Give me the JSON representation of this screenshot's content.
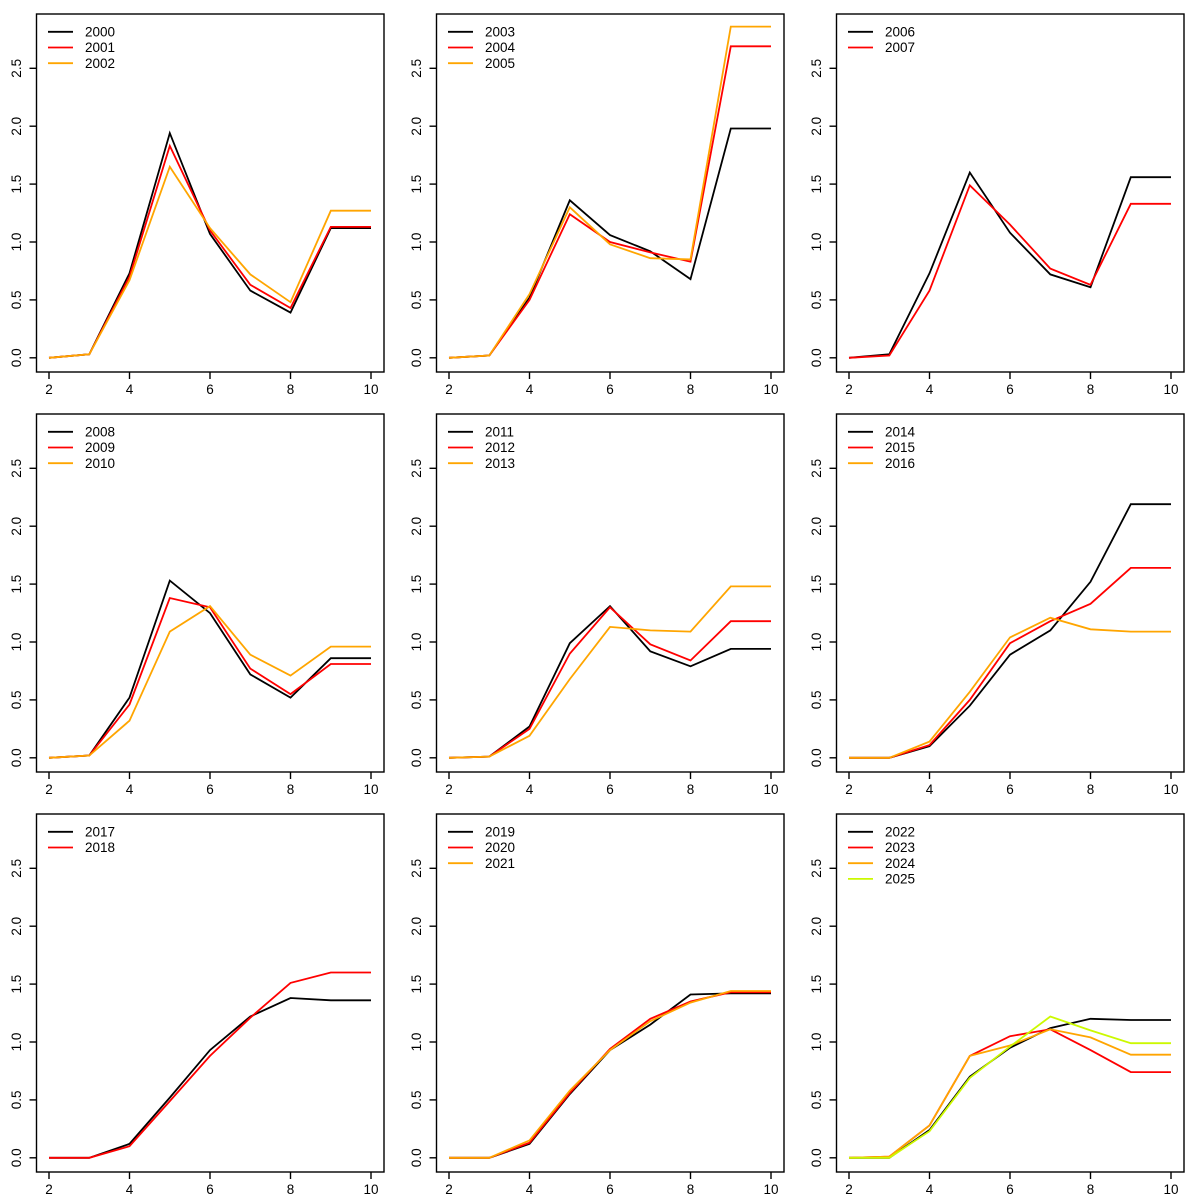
{
  "figure": {
    "background_color": "#ffffff",
    "layout": "3x3 grid of line charts",
    "line_colors": {
      "black": "#000000",
      "red": "#ff0000",
      "orange": "#ffa500",
      "greenyellow": "#ccf900"
    }
  },
  "axes": {
    "xlim": [
      1.68,
      10.32
    ],
    "ylim": [
      -0.115,
      2.98
    ],
    "x_ticks": [
      2,
      4,
      6,
      8,
      10
    ],
    "x_tick_labels": [
      "2",
      "4",
      "6",
      "8",
      "10"
    ],
    "y_ticks": [
      0.0,
      0.5,
      1.0,
      1.5,
      2.0,
      2.5
    ],
    "y_tick_labels": [
      "0.0",
      "0.5",
      "1.0",
      "1.5",
      "2.0",
      "2.5"
    ],
    "grid": "off",
    "box": "full",
    "legend_position": "topleft"
  },
  "chart_data": [
    {
      "type": "line",
      "x": [
        2,
        3,
        4,
        5,
        6,
        7,
        8,
        9,
        10
      ],
      "title": "",
      "xlabel": "",
      "ylabel": "",
      "series": [
        {
          "name": "2000",
          "color": "#000000",
          "values": [
            0.0,
            0.03,
            0.73,
            1.94,
            1.07,
            0.58,
            0.39,
            1.12,
            1.12
          ]
        },
        {
          "name": "2001",
          "color": "#ff0000",
          "values": [
            0.0,
            0.03,
            0.7,
            1.83,
            1.1,
            0.63,
            0.43,
            1.13,
            1.13
          ]
        },
        {
          "name": "2002",
          "color": "#ffa500",
          "values": [
            0.0,
            0.03,
            0.67,
            1.65,
            1.12,
            0.72,
            0.48,
            1.27,
            1.27
          ]
        }
      ]
    },
    {
      "type": "line",
      "x": [
        2,
        3,
        4,
        5,
        6,
        7,
        8,
        9,
        10
      ],
      "title": "",
      "xlabel": "",
      "ylabel": "",
      "series": [
        {
          "name": "2003",
          "color": "#000000",
          "values": [
            0.0,
            0.02,
            0.52,
            1.36,
            1.06,
            0.92,
            0.68,
            1.98,
            1.98
          ]
        },
        {
          "name": "2004",
          "color": "#ff0000",
          "values": [
            0.0,
            0.02,
            0.5,
            1.24,
            1.0,
            0.91,
            0.83,
            2.69,
            2.69
          ]
        },
        {
          "name": "2005",
          "color": "#ffa500",
          "values": [
            0.0,
            0.02,
            0.55,
            1.3,
            0.98,
            0.86,
            0.85,
            2.86,
            2.86
          ]
        }
      ]
    },
    {
      "type": "line",
      "x": [
        2,
        3,
        4,
        5,
        6,
        7,
        8,
        9,
        10
      ],
      "title": "",
      "xlabel": "",
      "ylabel": "",
      "series": [
        {
          "name": "2006",
          "color": "#000000",
          "values": [
            0.0,
            0.03,
            0.73,
            1.6,
            1.08,
            0.72,
            0.61,
            1.56,
            1.56
          ]
        },
        {
          "name": "2007",
          "color": "#ff0000",
          "values": [
            0.0,
            0.02,
            0.58,
            1.49,
            1.15,
            0.77,
            0.63,
            1.33,
            1.33
          ]
        }
      ]
    },
    {
      "type": "line",
      "x": [
        2,
        3,
        4,
        5,
        6,
        7,
        8,
        9,
        10
      ],
      "title": "",
      "xlabel": "",
      "ylabel": "",
      "series": [
        {
          "name": "2008",
          "color": "#000000",
          "values": [
            0.0,
            0.02,
            0.52,
            1.53,
            1.25,
            0.72,
            0.52,
            0.86,
            0.86
          ]
        },
        {
          "name": "2009",
          "color": "#ff0000",
          "values": [
            0.0,
            0.02,
            0.46,
            1.38,
            1.3,
            0.77,
            0.55,
            0.81,
            0.81
          ]
        },
        {
          "name": "2010",
          "color": "#ffa500",
          "values": [
            0.0,
            0.02,
            0.32,
            1.09,
            1.31,
            0.89,
            0.71,
            0.96,
            0.96
          ]
        }
      ]
    },
    {
      "type": "line",
      "x": [
        2,
        3,
        4,
        5,
        6,
        7,
        8,
        9,
        10
      ],
      "title": "",
      "xlabel": "",
      "ylabel": "",
      "series": [
        {
          "name": "2011",
          "color": "#000000",
          "values": [
            0.0,
            0.01,
            0.27,
            0.99,
            1.31,
            0.92,
            0.79,
            0.94,
            0.94
          ]
        },
        {
          "name": "2012",
          "color": "#ff0000",
          "values": [
            0.0,
            0.01,
            0.25,
            0.9,
            1.3,
            0.98,
            0.84,
            1.18,
            1.18
          ]
        },
        {
          "name": "2013",
          "color": "#ffa500",
          "values": [
            0.0,
            0.01,
            0.19,
            0.68,
            1.13,
            1.1,
            1.09,
            1.48,
            1.48
          ]
        }
      ]
    },
    {
      "type": "line",
      "x": [
        2,
        3,
        4,
        5,
        6,
        7,
        8,
        9,
        10
      ],
      "title": "",
      "xlabel": "",
      "ylabel": "",
      "series": [
        {
          "name": "2014",
          "color": "#000000",
          "values": [
            0.0,
            0.0,
            0.1,
            0.45,
            0.89,
            1.1,
            1.52,
            2.19,
            2.19
          ]
        },
        {
          "name": "2015",
          "color": "#ff0000",
          "values": [
            0.0,
            0.0,
            0.11,
            0.5,
            0.99,
            1.18,
            1.33,
            1.64,
            1.64
          ]
        },
        {
          "name": "2016",
          "color": "#ffa500",
          "values": [
            0.0,
            0.0,
            0.14,
            0.57,
            1.04,
            1.21,
            1.11,
            1.09,
            1.09
          ]
        }
      ]
    },
    {
      "type": "line",
      "x": [
        2,
        3,
        4,
        5,
        6,
        7,
        8,
        9,
        10
      ],
      "title": "",
      "xlabel": "",
      "ylabel": "",
      "series": [
        {
          "name": "2017",
          "color": "#000000",
          "values": [
            0.0,
            0.0,
            0.12,
            0.52,
            0.93,
            1.22,
            1.38,
            1.36,
            1.36
          ]
        },
        {
          "name": "2018",
          "color": "#ff0000",
          "values": [
            0.0,
            0.0,
            0.1,
            0.49,
            0.88,
            1.21,
            1.51,
            1.6,
            1.6
          ]
        }
      ]
    },
    {
      "type": "line",
      "x": [
        2,
        3,
        4,
        5,
        6,
        7,
        8,
        9,
        10
      ],
      "title": "",
      "xlabel": "",
      "ylabel": "",
      "series": [
        {
          "name": "2019",
          "color": "#000000",
          "values": [
            0.0,
            0.0,
            0.12,
            0.55,
            0.93,
            1.15,
            1.41,
            1.42,
            1.42
          ]
        },
        {
          "name": "2020",
          "color": "#ff0000",
          "values": [
            0.0,
            0.0,
            0.13,
            0.56,
            0.94,
            1.2,
            1.35,
            1.43,
            1.43
          ]
        },
        {
          "name": "2021",
          "color": "#ffa500",
          "values": [
            0.0,
            0.0,
            0.15,
            0.58,
            0.93,
            1.18,
            1.34,
            1.44,
            1.44
          ]
        }
      ]
    },
    {
      "type": "line",
      "x": [
        2,
        3,
        4,
        5,
        6,
        7,
        8,
        9,
        10
      ],
      "title": "",
      "xlabel": "",
      "ylabel": "",
      "series": [
        {
          "name": "2022",
          "color": "#000000",
          "values": [
            0.0,
            0.0,
            0.24,
            0.7,
            0.95,
            1.12,
            1.2,
            1.19,
            1.19
          ]
        },
        {
          "name": "2023",
          "color": "#ff0000",
          "values": [
            0.0,
            0.01,
            0.28,
            0.88,
            1.05,
            1.11,
            0.93,
            0.74,
            0.74
          ]
        },
        {
          "name": "2024",
          "color": "#ffa500",
          "values": [
            0.0,
            0.01,
            0.28,
            0.88,
            0.97,
            1.11,
            1.04,
            0.89,
            0.89
          ]
        },
        {
          "name": "2025",
          "color": "#ccf900",
          "values": [
            0.0,
            0.0,
            0.23,
            0.69,
            0.96,
            1.22,
            1.1,
            0.99,
            0.99
          ]
        }
      ]
    }
  ]
}
